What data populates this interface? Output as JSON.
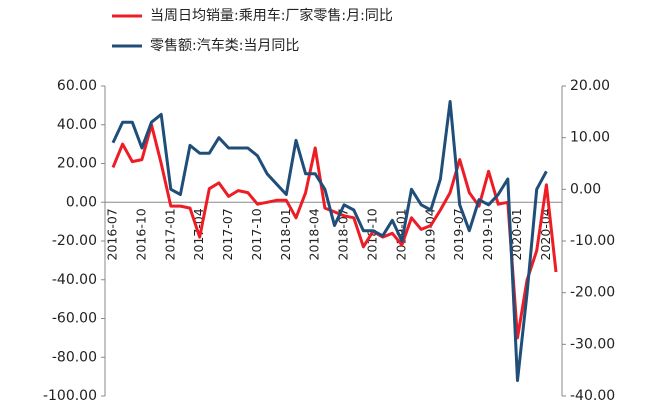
{
  "chart_data": {
    "type": "line",
    "categories": [
      "2016-07",
      null,
      null,
      "2016-10",
      null,
      null,
      "2017-01",
      null,
      null,
      "2017-04",
      null,
      null,
      "2017-07",
      null,
      null,
      "2017-10",
      null,
      null,
      "2018-01",
      null,
      null,
      "2018-04",
      null,
      null,
      "2018-07",
      null,
      null,
      "2018-10",
      null,
      null,
      "2019-01",
      null,
      null,
      "2019-04",
      null,
      null,
      "2019-07",
      null,
      null,
      "2019-10",
      null,
      null,
      "2020-01",
      null,
      null,
      "2020-04",
      null
    ],
    "series": [
      {
        "name": "当周日均销量:乘用车:厂家零售:月:同比",
        "color": "#ee1c25",
        "axis": "y",
        "values": [
          18,
          30,
          21,
          22,
          40,
          20,
          -2,
          -2,
          -3,
          -18,
          7,
          10,
          3,
          6,
          5,
          -1,
          0,
          1,
          1,
          -8,
          5,
          28,
          -3,
          -5,
          -7,
          -8,
          -23,
          -15,
          -18,
          -16,
          -22,
          -8,
          -14,
          -12,
          -4,
          5,
          22,
          5,
          -2,
          16,
          -1,
          0,
          -70,
          -40,
          -25,
          9,
          -36
        ]
      },
      {
        "name": "零售额:汽车类:当月同比",
        "color": "#1f4e79",
        "axis": "y2",
        "values": [
          9,
          13,
          13,
          8,
          13,
          14.5,
          0,
          -1,
          8.5,
          7,
          7,
          10,
          8,
          8,
          8,
          6.5,
          3,
          1,
          -1,
          9.5,
          3,
          3,
          0,
          -7,
          -3,
          -4,
          -8,
          -8,
          -9,
          -6,
          -10,
          0,
          -3,
          -4,
          2,
          17,
          -3,
          -8,
          -2,
          -3,
          -1,
          2,
          -37,
          -20,
          0,
          3.5,
          null
        ]
      }
    ],
    "ylim": [
      -100,
      60
    ],
    "yticks": [
      {
        "value": -100,
        "label": "-100.00"
      },
      {
        "value": -80,
        "label": "-80.00"
      },
      {
        "value": -60,
        "label": "-60.00"
      },
      {
        "value": -40,
        "label": "-40.00"
      },
      {
        "value": -20,
        "label": "-20.00"
      },
      {
        "value": 0,
        "label": "0.00"
      },
      {
        "value": 20,
        "label": "20.00"
      },
      {
        "value": 40,
        "label": "40.00"
      },
      {
        "value": 60,
        "label": "60.00"
      }
    ],
    "y2lim": [
      -40,
      20
    ],
    "y2ticks": [
      {
        "value": -40,
        "label": "-40.00"
      },
      {
        "value": -30,
        "label": "-30.00"
      },
      {
        "value": -20,
        "label": "-20.00"
      },
      {
        "value": -10,
        "label": "-10.00"
      },
      {
        "value": 0,
        "label": "0.00"
      },
      {
        "value": 10,
        "label": "10.00"
      },
      {
        "value": 20,
        "label": "20.00"
      }
    ],
    "legend": "top"
  }
}
